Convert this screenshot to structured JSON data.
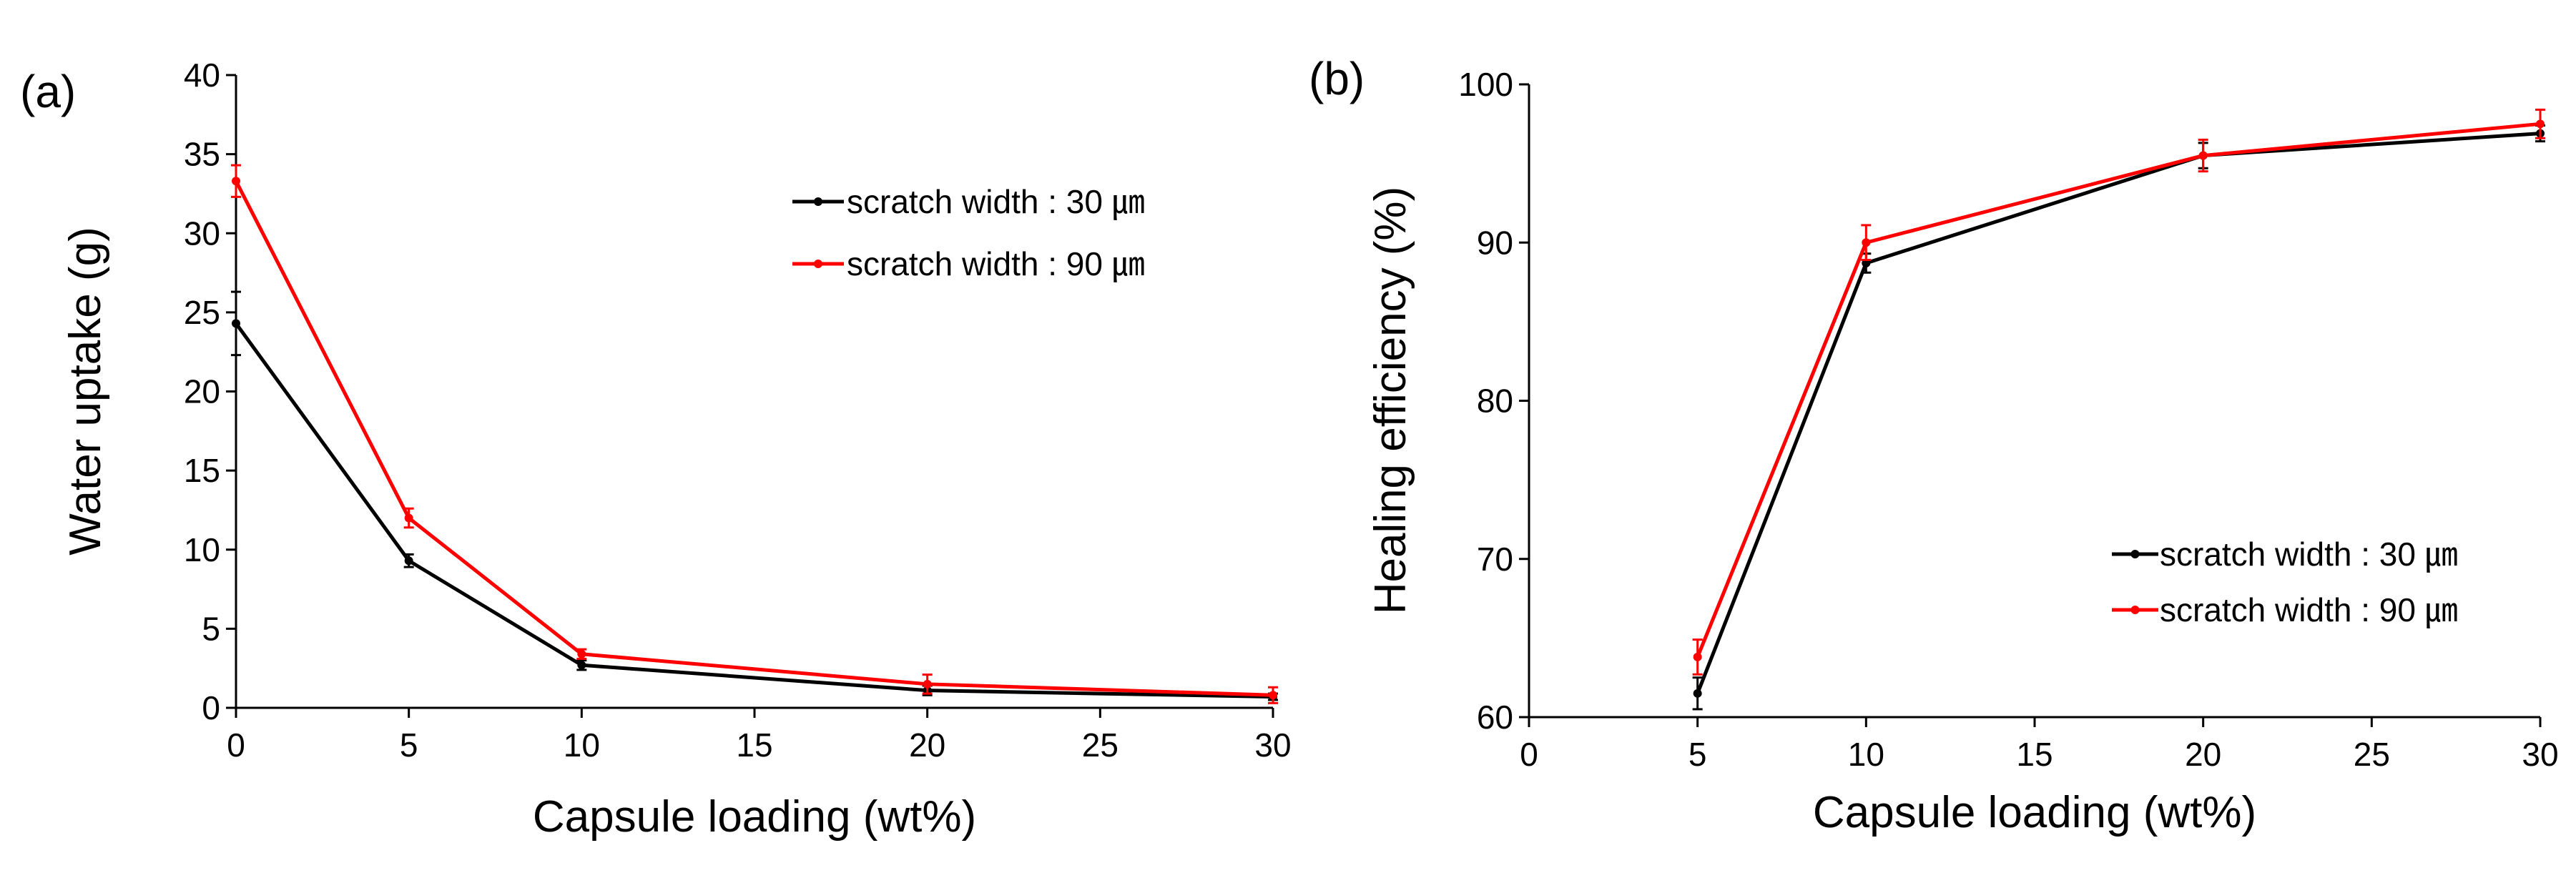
{
  "chart_data": [
    {
      "type": "line",
      "panel_label": "(a)",
      "xlabel": "Capsule loading (wt%)",
      "ylabel": "Water uptake (g)",
      "xlim": [
        0,
        30
      ],
      "ylim": [
        0,
        40
      ],
      "xticks": [
        0,
        5,
        10,
        15,
        20,
        25,
        30
      ],
      "yticks": [
        0,
        5,
        10,
        15,
        20,
        25,
        30,
        35,
        40
      ],
      "legend_position": "top-right",
      "series": [
        {
          "name": "scratch width : 30 ㎛",
          "color": "#000000",
          "x": [
            0,
            5,
            10,
            20,
            30
          ],
          "y": [
            24.3,
            9.3,
            2.7,
            1.1,
            0.7
          ],
          "err": [
            2.0,
            0.4,
            0.3,
            0.3,
            0.2
          ]
        },
        {
          "name": "scratch width : 90 ㎛",
          "color": "#ff0000",
          "x": [
            0,
            5,
            10,
            20,
            30
          ],
          "y": [
            33.3,
            12.0,
            3.4,
            1.5,
            0.8
          ],
          "err": [
            1.0,
            0.6,
            0.3,
            0.6,
            0.5
          ]
        }
      ]
    },
    {
      "type": "line",
      "panel_label": "(b)",
      "xlabel": "Capsule loading (wt%)",
      "ylabel": "Healing efficiency (%)",
      "xlim": [
        0,
        30
      ],
      "ylim": [
        60,
        100
      ],
      "xticks": [
        0,
        5,
        10,
        15,
        20,
        25,
        30
      ],
      "yticks": [
        60,
        70,
        80,
        90,
        100
      ],
      "legend_position": "bottom-right",
      "series": [
        {
          "name": "scratch width : 30 ㎛",
          "color": "#000000",
          "x": [
            5,
            10,
            20,
            30
          ],
          "y": [
            61.5,
            88.7,
            95.5,
            96.9
          ],
          "err": [
            1.0,
            0.6,
            0.8,
            0.5
          ]
        },
        {
          "name": "scratch width : 90 ㎛",
          "color": "#ff0000",
          "x": [
            5,
            10,
            20,
            30
          ],
          "y": [
            63.8,
            90.0,
            95.5,
            97.5
          ],
          "err": [
            1.1,
            1.1,
            1.0,
            0.9
          ]
        }
      ]
    }
  ]
}
